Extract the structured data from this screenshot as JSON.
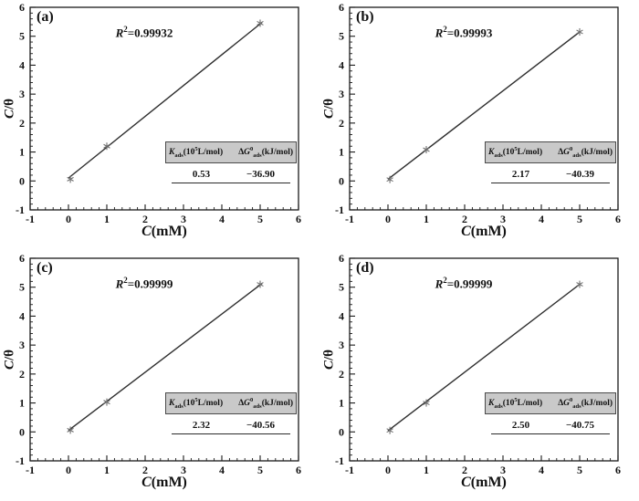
{
  "page": {
    "background": "#ffffff"
  },
  "axes": {
    "xlim": [
      -1,
      6
    ],
    "ylim": [
      -1,
      6
    ],
    "xticks": [
      -1,
      0,
      1,
      2,
      3,
      4,
      5,
      6
    ],
    "yticks": [
      -1,
      0,
      1,
      2,
      3,
      4,
      5,
      6
    ],
    "minor_ticks_per_interval": 4,
    "grid": "off",
    "xlabel": {
      "sym": "C",
      "unit": "(mM)"
    },
    "ylabel": {
      "sym": "C",
      "unit": "/θ"
    }
  },
  "annotations": {
    "r_sym": "R",
    "r_sup": "2",
    "r_eq": "="
  },
  "inset_header": {
    "col1": {
      "sym": "K",
      "sub": "ads",
      "pre": "(10",
      "sup": "5",
      "post": "L/mol)"
    },
    "col2": {
      "pre": "Δ",
      "sym": "G",
      "sup": "0",
      "sub": "ads",
      "post": "(kJ/mol)"
    }
  },
  "colors": {
    "axis": "#1a1a1a",
    "fit_line": "#2e2e2e",
    "marker": "#6f6f6f",
    "inset_bg": "#c9c9c9",
    "inset_border": "#4a4a4a",
    "text": "#111111"
  },
  "chart_data": [
    {
      "type": "scatter",
      "panel_label": "(a)",
      "r2": "0.99932",
      "k_value": "0.53",
      "dg_value": "−36.90",
      "xlabel": "C(mM)",
      "ylabel": "C/θ",
      "xlim": [
        -1,
        6
      ],
      "ylim": [
        -1,
        6
      ],
      "points": [
        [
          0.05,
          0.06
        ],
        [
          1.0,
          1.2
        ],
        [
          5.0,
          5.45
        ]
      ],
      "fit_line": {
        "x1": 0.0,
        "y1": 0.1,
        "x2": 5.05,
        "y2": 5.48
      }
    },
    {
      "type": "scatter",
      "panel_label": "(b)",
      "r2": "0.99993",
      "k_value": "2.17",
      "dg_value": "−40.39",
      "xlabel": "C(mM)",
      "ylabel": "C/θ",
      "xlim": [
        -1,
        6
      ],
      "ylim": [
        -1,
        6
      ],
      "points": [
        [
          0.05,
          0.05
        ],
        [
          1.0,
          1.08
        ],
        [
          5.0,
          5.15
        ]
      ],
      "fit_line": {
        "x1": 0.0,
        "y1": 0.06,
        "x2": 5.02,
        "y2": 5.17
      }
    },
    {
      "type": "scatter",
      "panel_label": "(c)",
      "r2": "0.99999",
      "k_value": "2.32",
      "dg_value": "−40.56",
      "xlabel": "C(mM)",
      "ylabel": "C/θ",
      "xlim": [
        -1,
        6
      ],
      "ylim": [
        -1,
        6
      ],
      "points": [
        [
          0.05,
          0.06
        ],
        [
          1.0,
          1.03
        ],
        [
          5.0,
          5.1
        ]
      ],
      "fit_line": {
        "x1": 0.0,
        "y1": 0.05,
        "x2": 5.05,
        "y2": 5.13
      }
    },
    {
      "type": "scatter",
      "panel_label": "(d)",
      "r2": "0.99999",
      "k_value": "2.50",
      "dg_value": "−40.75",
      "xlabel": "C(mM)",
      "ylabel": "C/θ",
      "xlim": [
        -1,
        6
      ],
      "ylim": [
        -1,
        6
      ],
      "points": [
        [
          0.05,
          0.05
        ],
        [
          1.0,
          1.0
        ],
        [
          5.0,
          5.1
        ]
      ],
      "fit_line": {
        "x1": 0.0,
        "y1": 0.04,
        "x2": 5.02,
        "y2": 5.12
      }
    }
  ]
}
